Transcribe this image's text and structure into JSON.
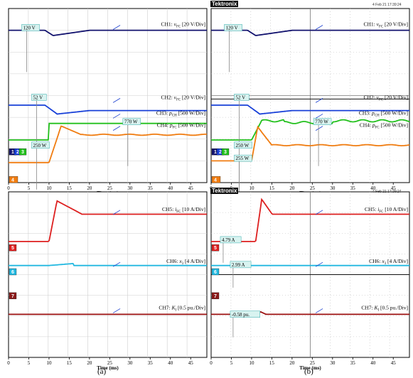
{
  "panels": {
    "a": {
      "caption": "(a)",
      "top": {
        "x_range": [
          0,
          49
        ],
        "x_ticks": [
          0,
          5,
          10,
          15,
          20,
          25,
          30,
          35,
          40,
          45
        ],
        "x_label": "Time (ms)",
        "channels": [
          {
            "id": "CH1",
            "label_prefix": "CH1: ",
            "symbol": "v",
            "sub": "FC",
            "label_suffix": " [20 V/Div]",
            "color": "#12126e",
            "kind": "ch1"
          },
          {
            "id": "CH2",
            "label_prefix": "CH2: ",
            "symbol": "v",
            "sub": "FC",
            "label_suffix": " [20 V/Div]",
            "color": "#1840d8",
            "kind": "ch2"
          },
          {
            "id": "CH3",
            "label_prefix": "CH3: ",
            "symbol": "p",
            "sub": "CH",
            "label_suffix": " [500 W/Div]",
            "color": "#22c01c",
            "kind": "ch3"
          },
          {
            "id": "CH4",
            "label_prefix": "CH4: ",
            "symbol": "p",
            "sub": "FC",
            "label_suffix": " [500 W/Div]",
            "color": "#f07c10",
            "kind": "ch4"
          }
        ],
        "annotations": [
          "120 V",
          "52 V",
          "250 W",
          "770 W"
        ],
        "markers": [
          "1",
          "2",
          "3",
          "4"
        ]
      },
      "bottom": {
        "x_range": [
          0,
          49
        ],
        "x_ticks": [
          0,
          5,
          10,
          15,
          20,
          25,
          30,
          35,
          40,
          45
        ],
        "x_label": "Time (ms)",
        "channels": [
          {
            "id": "CH5",
            "label_prefix": "CH5: ",
            "symbol": "i",
            "sub": "FC",
            "label_suffix": " [10 A/Div]",
            "color": "#dd1f1f",
            "kind": "ch5"
          },
          {
            "id": "CH6",
            "label_prefix": "CH6: ",
            "symbol": "x",
            "sub": "3",
            "label_suffix": " [4 A/Div]",
            "color": "#22b8e0",
            "kind": "ch6"
          },
          {
            "id": "CH7",
            "label_prefix": "CH7: ",
            "symbol": "K",
            "sub": "I",
            "label_suffix": " [0.5 pu./Div]",
            "color": "#9b0f0f",
            "kind": "ch7"
          }
        ],
        "annotations": [],
        "markers": [
          "5",
          "6",
          "7"
        ]
      }
    },
    "b": {
      "caption": "(b)",
      "brand": "Tektronix",
      "stamp_top": "4 Feb 21  17:39:24",
      "stamp_bottom": "4 Feb 21  17:39:24",
      "top": {
        "x_range": [
          0,
          49
        ],
        "x_ticks": [
          0,
          5,
          10,
          15,
          20,
          25,
          30,
          35,
          40,
          45
        ],
        "x_label": "Time (ms)",
        "channels": [
          {
            "id": "CH1",
            "label_prefix": "CH1: ",
            "symbol": "v",
            "sub": "FC",
            "label_suffix": " [20 V/Div]",
            "color": "#12126e",
            "kind": "ch1"
          },
          {
            "id": "CH2",
            "label_prefix": "CH2: ",
            "symbol": "v",
            "sub": "FC",
            "label_suffix": " [20 V/Div]",
            "color": "#1840d8",
            "kind": "ch2"
          },
          {
            "id": "CH3",
            "label_prefix": "CH3: ",
            "symbol": "p",
            "sub": "CH",
            "label_suffix": " [500 W/Div]",
            "color": "#22c01c",
            "kind": "ch3b"
          },
          {
            "id": "CH4",
            "label_prefix": "CH4: ",
            "symbol": "p",
            "sub": "FC",
            "label_suffix": " [500 W/Div]",
            "color": "#f07c10",
            "kind": "ch4b"
          }
        ],
        "annotations": [
          "120 V",
          "52 V",
          "250 W",
          "255 W",
          "770 W"
        ],
        "markers": [
          "1",
          "2",
          "3",
          "4"
        ]
      },
      "bottom": {
        "x_range": [
          0,
          49
        ],
        "x_ticks": [
          0,
          5,
          10,
          15,
          20,
          25,
          30,
          35,
          40,
          45
        ],
        "x_label": "Time (ms)",
        "channels": [
          {
            "id": "CH5",
            "label_prefix": "CH5: ",
            "symbol": "i",
            "sub": "FC",
            "label_suffix": " [10 A/Div]",
            "color": "#dd1f1f",
            "kind": "ch5b"
          },
          {
            "id": "CH6",
            "label_prefix": "CH6: ",
            "symbol": "x",
            "sub": "3",
            "label_suffix": " [4 A/Div]",
            "color": "#22b8e0",
            "kind": "ch6b"
          },
          {
            "id": "CH7",
            "label_prefix": "CH7: ",
            "symbol": "K",
            "sub": "I",
            "label_suffix": " [0.5 pu./Div]",
            "color": "#9b0f0f",
            "kind": "ch7b"
          }
        ],
        "annotations": [
          "4.79 A",
          "2.99 A",
          "-0.58 pu."
        ],
        "markers": [
          "5",
          "6",
          "7"
        ]
      }
    }
  },
  "chart_data": [
    {
      "type": "line",
      "panel": "a-top",
      "xlabel": "Time (ms)",
      "xlim": [
        0,
        49
      ],
      "series": [
        {
          "name": "CH1: vFC [20 V/Div]",
          "x": [
            0,
            9,
            11,
            14,
            20,
            49
          ],
          "y": [
            120,
            120,
            115,
            118,
            120,
            120
          ]
        },
        {
          "name": "CH2: vFC [20 V/Div]",
          "x": [
            0,
            9,
            12,
            15,
            20,
            49
          ],
          "y": [
            52,
            52,
            46,
            48,
            49,
            49
          ]
        },
        {
          "name": "CH3: pCH [500 W/Div]",
          "x": [
            0,
            10,
            10,
            49
          ],
          "y": [
            250,
            250,
            770,
            770
          ]
        },
        {
          "name": "CH4: pFC [500 W/Div]",
          "x": [
            0,
            10,
            13,
            18,
            30,
            49
          ],
          "y": [
            250,
            250,
            830,
            780,
            770,
            770
          ]
        }
      ]
    },
    {
      "type": "line",
      "panel": "a-bottom",
      "xlabel": "Time (ms)",
      "xlim": [
        0,
        49
      ],
      "series": [
        {
          "name": "CH5: iFC [10 A/Div]",
          "x": [
            0,
            10,
            13,
            18,
            25,
            49
          ],
          "y": [
            0,
            0,
            1,
            0.85,
            0.82,
            0.82
          ]
        },
        {
          "name": "CH6: x3 [4 A/Div]",
          "x": [
            0,
            10,
            15,
            49
          ],
          "y": [
            0,
            0,
            0.05,
            0
          ]
        },
        {
          "name": "CH7: KI [0.5 pu./Div]",
          "x": [
            0,
            49
          ],
          "y": [
            0,
            0
          ]
        }
      ]
    },
    {
      "type": "line",
      "panel": "b-top",
      "xlabel": "Time (ms)",
      "xlim": [
        0,
        49
      ],
      "series": [
        {
          "name": "CH1: vFC [20 V/Div]",
          "x": [
            0,
            10,
            12,
            15,
            49
          ],
          "y": [
            120,
            120,
            116,
            119,
            120
          ]
        },
        {
          "name": "CH2: vFC [20 V/Div]",
          "x": [
            0,
            10,
            13,
            16,
            49
          ],
          "y": [
            52,
            52,
            46,
            47,
            47
          ]
        },
        {
          "name": "CH3: pCH [500 W/Div]",
          "x": [
            0,
            10,
            13,
            20,
            49
          ],
          "y": [
            250,
            250,
            780,
            760,
            770
          ]
        },
        {
          "name": "CH4: pFC [500 W/Div]",
          "x": [
            0,
            10,
            12,
            15,
            49
          ],
          "y": [
            255,
            255,
            700,
            600,
            590
          ]
        }
      ]
    },
    {
      "type": "line",
      "panel": "b-bottom",
      "xlabel": "Time (ms)",
      "xlim": [
        0,
        49
      ],
      "series": [
        {
          "name": "CH5: iFC [10 A/Div]",
          "x": [
            0,
            11,
            12,
            15,
            49
          ],
          "y": [
            4.79,
            4.79,
            14,
            12,
            12
          ]
        },
        {
          "name": "CH6: x3 [4 A/Div]",
          "x": [
            0,
            49
          ],
          "y": [
            2.99,
            2.99
          ]
        },
        {
          "name": "CH7: KI [0.5 pu./Div]",
          "x": [
            0,
            11,
            13,
            49
          ],
          "y": [
            -0.58,
            -0.58,
            -0.5,
            -0.58
          ]
        }
      ]
    }
  ]
}
